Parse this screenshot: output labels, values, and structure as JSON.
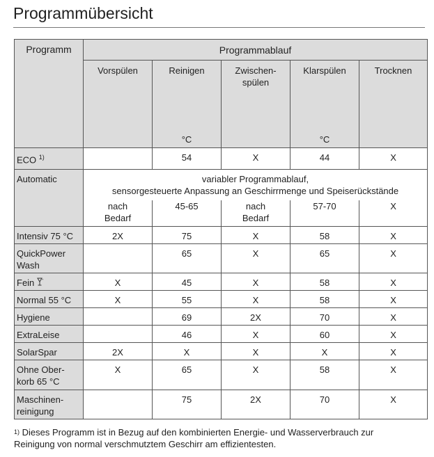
{
  "title": "Programmübersicht",
  "table": {
    "header_program": "Programm",
    "header_flow": "Programmablauf",
    "columns": [
      {
        "label": "Vorspülen",
        "unit": ""
      },
      {
        "label": "Reinigen",
        "unit": "°C"
      },
      {
        "label": "Zwischen-\nspülen",
        "unit": ""
      },
      {
        "label": "Klarspülen",
        "unit": "°C"
      },
      {
        "label": "Trocknen",
        "unit": ""
      }
    ],
    "eco": {
      "name": "ECO",
      "mark": "1)",
      "cells": [
        "",
        "54",
        "X",
        "44",
        "X"
      ]
    },
    "automatic": {
      "name": "Automatic",
      "note_line1": "variabler Programmablauf,",
      "note_line2": "sensorgesteuerte Anpassung an Geschirrmenge und Speiserückstände",
      "cells": [
        "nach\nBedarf",
        "45-65",
        "nach\nBedarf",
        "57-70",
        "X"
      ]
    },
    "rows": [
      {
        "name": "Intensiv 75 °C",
        "cells": [
          "2X",
          "75",
          "X",
          "58",
          "X"
        ]
      },
      {
        "name": "QuickPower\nWash",
        "cells": [
          "",
          "65",
          "X",
          "65",
          "X"
        ]
      },
      {
        "name": "Fein",
        "icon": "wine-glass-icon",
        "cells": [
          "X",
          "45",
          "X",
          "58",
          "X"
        ]
      },
      {
        "name": "Normal 55 °C",
        "cells": [
          "X",
          "55",
          "X",
          "58",
          "X"
        ]
      },
      {
        "name": "Hygiene",
        "cells": [
          "",
          "69",
          "2X",
          "70",
          "X"
        ]
      },
      {
        "name": "ExtraLeise",
        "cells": [
          "",
          "46",
          "X",
          "60",
          "X"
        ]
      },
      {
        "name": "SolarSpar",
        "cells": [
          "2X",
          "X",
          "X",
          "X",
          "X"
        ]
      },
      {
        "name": "Ohne Ober-\nkorb 65 °C",
        "cells": [
          "X",
          "65",
          "X",
          "58",
          "X"
        ]
      },
      {
        "name": "Maschinen-\nreinigung",
        "cells": [
          "",
          "75",
          "2X",
          "70",
          "X"
        ]
      }
    ]
  },
  "footnote": {
    "mark": "1)",
    "line1": "Dieses Programm ist in Bezug auf den kombinierten Energie- und Wasserverbrauch zur",
    "line2": "Reinigung von normal verschmutztem Geschirr am effizientesten."
  }
}
